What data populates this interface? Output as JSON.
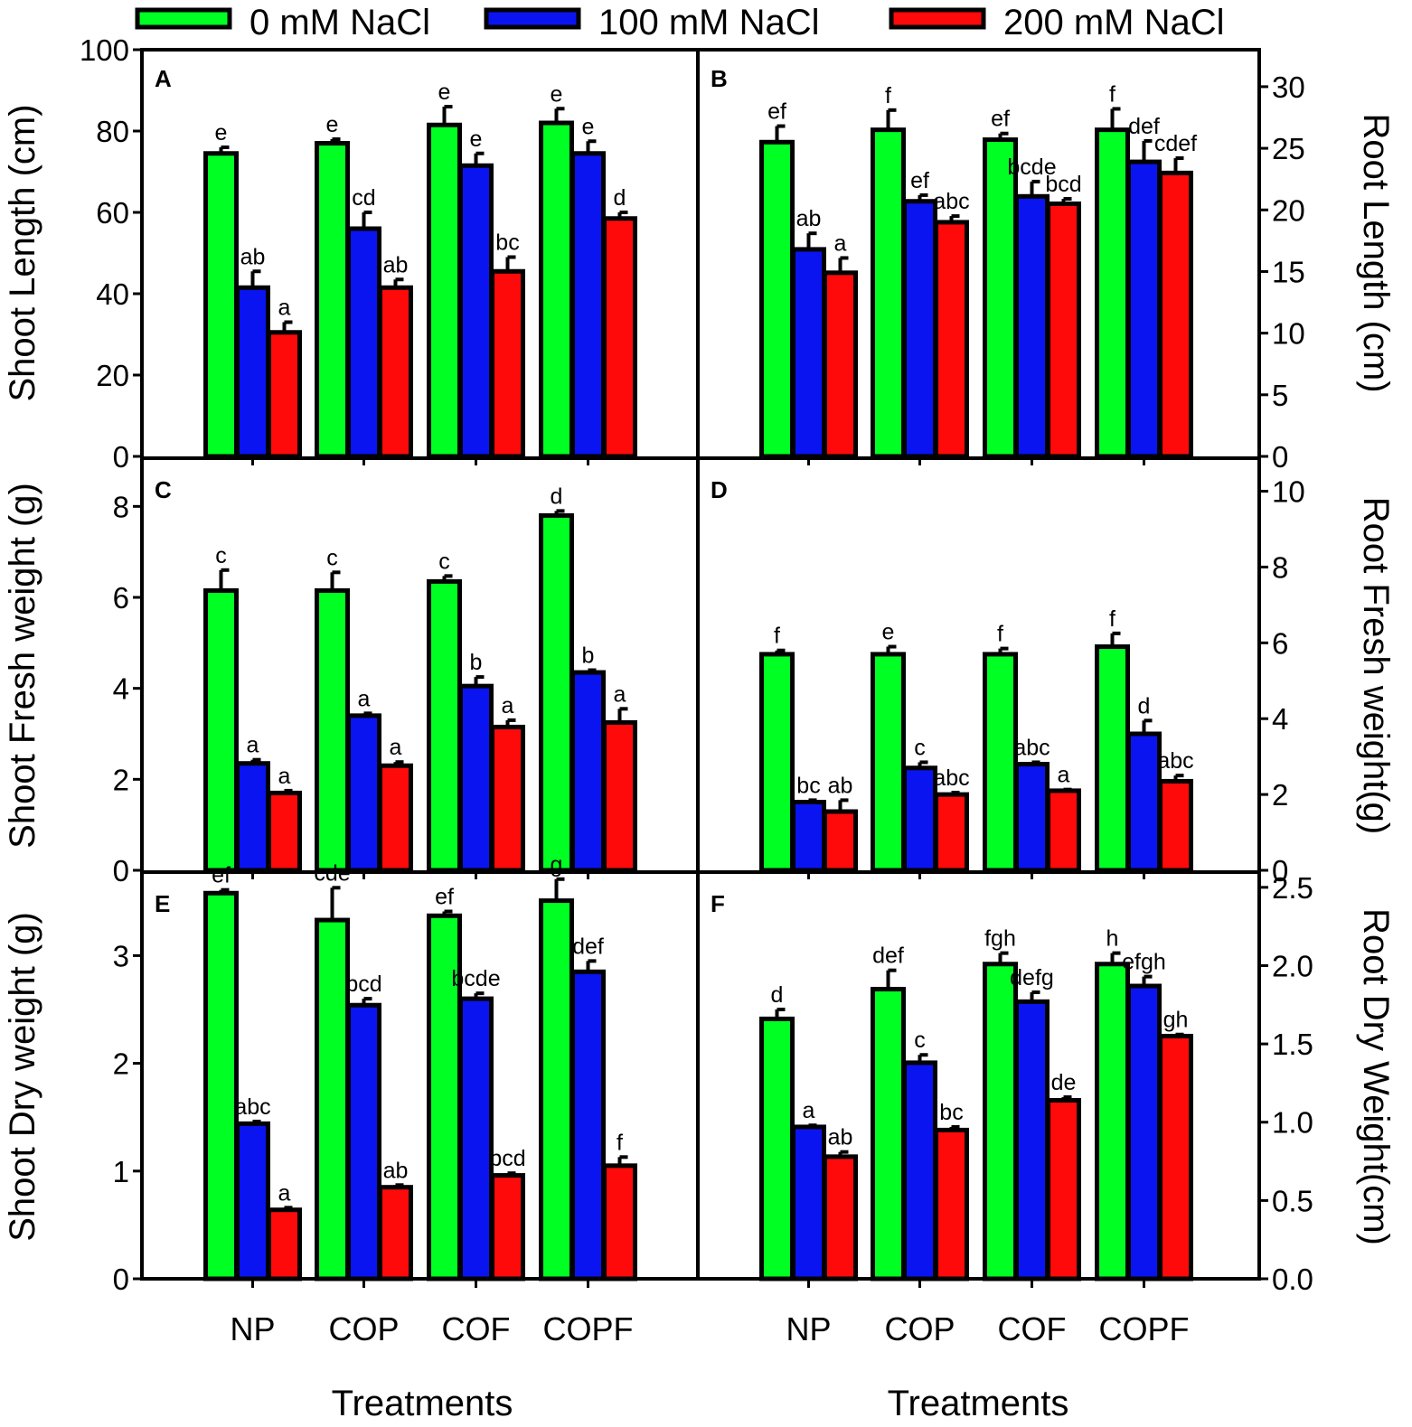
{
  "figure": {
    "legend": [
      {
        "name": "0 mM NaCl",
        "color": "#00ff22"
      },
      {
        "name": "100 mM NaCl",
        "color": "#0a14f0"
      },
      {
        "name": "200 mM NaCl",
        "color": "#ff0a0a"
      }
    ],
    "xlabel": "Treatments",
    "categories": [
      "NP",
      "COP",
      "COF",
      "COPF"
    ]
  },
  "chart_data": [
    {
      "type": "bar",
      "panel": "A",
      "ylabel": "Shoot Length (cm)",
      "axis_side": "left",
      "ylim": [
        0,
        100
      ],
      "yticks": [
        "0",
        "20",
        "40",
        "60",
        "80",
        "100"
      ],
      "ytick_values": [
        0,
        20,
        40,
        60,
        80,
        100
      ],
      "categories": [
        "NP",
        "COP",
        "COF",
        "COPF"
      ],
      "series": [
        {
          "name": "0 mM NaCl",
          "values": [
            74.5,
            77,
            81.5,
            82
          ],
          "errors": [
            1.5,
            1,
            4.5,
            3.5
          ],
          "letters": [
            "e",
            "e",
            "e",
            "e"
          ]
        },
        {
          "name": "100 mM NaCl",
          "values": [
            41.5,
            56,
            71.5,
            74.5
          ],
          "errors": [
            4,
            4,
            3,
            3
          ],
          "letters": [
            "ab",
            "cd",
            "e",
            "e"
          ]
        },
        {
          "name": "200 mM NaCl",
          "values": [
            30.5,
            41.5,
            45.5,
            58.5
          ],
          "errors": [
            2.5,
            2,
            3.5,
            1.5
          ],
          "letters": [
            "a",
            "ab",
            "bc",
            "d"
          ]
        }
      ]
    },
    {
      "type": "bar",
      "panel": "B",
      "ylabel": "Root Length (cm)",
      "axis_side": "right",
      "ylim": [
        0,
        33
      ],
      "yticks": [
        "0",
        "5",
        "10",
        "15",
        "20",
        "25",
        "30"
      ],
      "ytick_values": [
        0,
        5,
        10,
        15,
        20,
        25,
        30
      ],
      "categories": [
        "NP",
        "COP",
        "COF",
        "COPF"
      ],
      "series": [
        {
          "name": "0 mM NaCl",
          "values": [
            25.5,
            26.5,
            25.7,
            26.5
          ],
          "errors": [
            1.3,
            1.6,
            0.5,
            1.7
          ],
          "letters": [
            "ef",
            "f",
            "ef",
            "f"
          ]
        },
        {
          "name": "100 mM NaCl",
          "values": [
            16.8,
            20.7,
            21.1,
            23.9
          ],
          "errors": [
            1.3,
            0.5,
            1.2,
            1.7
          ],
          "letters": [
            "ab",
            "ef",
            "bcde",
            "def"
          ]
        },
        {
          "name": "200 mM NaCl",
          "values": [
            14.9,
            19,
            20.5,
            23
          ],
          "errors": [
            1.2,
            0.5,
            0.4,
            1.2
          ],
          "letters": [
            "a",
            "abc",
            "bcd",
            "cdef"
          ]
        }
      ]
    },
    {
      "type": "bar",
      "panel": "C",
      "ylabel": "Shoot Fresh weight (g)",
      "axis_side": "left",
      "ylim": [
        0,
        9
      ],
      "yticks": [
        "0",
        "2",
        "4",
        "6",
        "8"
      ],
      "ytick_values": [
        0,
        2,
        4,
        6,
        8
      ],
      "categories": [
        "NP",
        "COP",
        "COF",
        "COPF"
      ],
      "series": [
        {
          "name": "0 mM NaCl",
          "values": [
            6.15,
            6.15,
            6.35,
            7.8
          ],
          "errors": [
            0.45,
            0.4,
            0.12,
            0.1
          ],
          "letters": [
            "c",
            "c",
            "c",
            "d"
          ]
        },
        {
          "name": "100 mM NaCl",
          "values": [
            2.35,
            3.4,
            4.05,
            4.35
          ],
          "errors": [
            0.08,
            0.05,
            0.2,
            0.05
          ],
          "letters": [
            "a",
            "a",
            "b",
            "b"
          ]
        },
        {
          "name": "200 mM NaCl",
          "values": [
            1.7,
            2.3,
            3.15,
            3.25
          ],
          "errors": [
            0.05,
            0.08,
            0.15,
            0.3
          ],
          "letters": [
            "a",
            "a",
            "a",
            "a"
          ]
        }
      ]
    },
    {
      "type": "bar",
      "panel": "D",
      "ylabel": "Root Fresh weight(g)",
      "axis_side": "right",
      "ylim": [
        0,
        10.8
      ],
      "yticks": [
        "0",
        "2",
        "4",
        "6",
        "8",
        "10"
      ],
      "ytick_values": [
        0,
        2,
        4,
        6,
        8,
        10
      ],
      "categories": [
        "NP",
        "COP",
        "COF",
        "COPF"
      ],
      "series": [
        {
          "name": "0 mM NaCl",
          "values": [
            5.7,
            5.7,
            5.7,
            5.9
          ],
          "errors": [
            0.1,
            0.2,
            0.15,
            0.35
          ],
          "letters": [
            "f",
            "e",
            "f",
            "f"
          ]
        },
        {
          "name": "100 mM NaCl",
          "values": [
            1.8,
            2.7,
            2.8,
            3.6
          ],
          "errors": [
            0.05,
            0.15,
            0.05,
            0.35
          ],
          "letters": [
            "bc",
            "c",
            "abc",
            "d"
          ]
        },
        {
          "name": "200 mM NaCl",
          "values": [
            1.55,
            2,
            2.1,
            2.35
          ],
          "errors": [
            0.3,
            0.05,
            0.03,
            0.15
          ],
          "letters": [
            "ab",
            "abc",
            "a",
            "abc"
          ]
        }
      ]
    },
    {
      "type": "bar",
      "panel": "E",
      "ylabel": "Shoot Dry weight (g)",
      "axis_side": "left",
      "ylim": [
        0,
        3.75
      ],
      "yticks": [
        "0",
        "1",
        "2",
        "3"
      ],
      "ytick_values": [
        0,
        1,
        2,
        3
      ],
      "categories": [
        "NP",
        "COP",
        "COF",
        "COPF"
      ],
      "series": [
        {
          "name": "0 mM NaCl",
          "values": [
            3.58,
            3.33,
            3.37,
            3.51
          ],
          "errors": [
            0.03,
            0.3,
            0.04,
            0.2
          ],
          "letters": [
            "ef",
            "cde",
            "ef",
            "g"
          ]
        },
        {
          "name": "100 mM NaCl",
          "values": [
            1.44,
            2.54,
            2.6,
            2.85
          ],
          "errors": [
            0.02,
            0.06,
            0.05,
            0.1
          ],
          "letters": [
            "abc",
            "bcd",
            "bcde",
            "def"
          ]
        },
        {
          "name": "200 mM NaCl",
          "values": [
            0.64,
            0.85,
            0.96,
            1.05
          ],
          "errors": [
            0.02,
            0.02,
            0.02,
            0.08
          ],
          "letters": [
            "a",
            "ab",
            "bcd",
            "f"
          ]
        }
      ]
    },
    {
      "type": "bar",
      "panel": "F",
      "ylabel": "Root Dry Weight(cm)",
      "axis_side": "right",
      "ylim": [
        0,
        2.58
      ],
      "yticks": [
        "0.0",
        "0.5",
        "1.0",
        "1.5",
        "2.0",
        "2.5"
      ],
      "ytick_values": [
        0,
        0.5,
        1,
        1.5,
        2,
        2.5
      ],
      "categories": [
        "NP",
        "COP",
        "COF",
        "COPF"
      ],
      "series": [
        {
          "name": "0 mM NaCl",
          "values": [
            1.66,
            1.85,
            2.01,
            2.01
          ],
          "errors": [
            0.06,
            0.12,
            0.07,
            0.07
          ],
          "letters": [
            "d",
            "def",
            "fgh",
            "h"
          ]
        },
        {
          "name": "100 mM NaCl",
          "values": [
            0.97,
            1.38,
            1.77,
            1.87
          ],
          "errors": [
            0.01,
            0.05,
            0.06,
            0.06
          ],
          "letters": [
            "a",
            "c",
            "defg",
            "efgh"
          ]
        },
        {
          "name": "200 mM NaCl",
          "values": [
            0.78,
            0.95,
            1.14,
            1.55
          ],
          "errors": [
            0.03,
            0.02,
            0.02,
            0.01
          ],
          "letters": [
            "ab",
            "bc",
            "de",
            "gh"
          ]
        }
      ]
    }
  ]
}
